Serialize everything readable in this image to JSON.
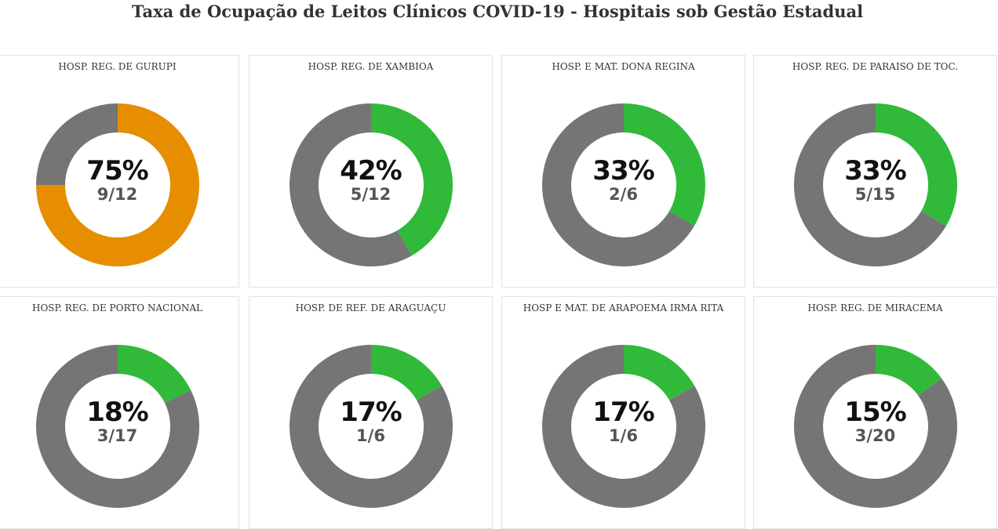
{
  "title": "Taxa de Ocupação de Leitos Clínicos COVID-19 - Hospitais sob Gestão Estadual",
  "colors": {
    "remaining": "#757575",
    "low": "#31b93a",
    "high": "#e68e00"
  },
  "chart_data": [
    {
      "type": "pie",
      "title": "HOSP. REG. DE GURUPI",
      "value_pct": 75,
      "label": "75%",
      "ratio": "9/12",
      "occupied": 9,
      "total": 12,
      "color": "#e68e00"
    },
    {
      "type": "pie",
      "title": "HOSP. REG. DE XAMBIOA",
      "value_pct": 42,
      "label": "42%",
      "ratio": "5/12",
      "occupied": 5,
      "total": 12,
      "color": "#31b93a"
    },
    {
      "type": "pie",
      "title": "HOSP. E MAT. DONA REGINA",
      "value_pct": 33,
      "label": "33%",
      "ratio": "2/6",
      "occupied": 2,
      "total": 6,
      "color": "#31b93a"
    },
    {
      "type": "pie",
      "title": "HOSP. REG. DE PARAISO DE TOC.",
      "value_pct": 33,
      "label": "33%",
      "ratio": "5/15",
      "occupied": 5,
      "total": 15,
      "color": "#31b93a"
    },
    {
      "type": "pie",
      "title": "HOSP. REG. DE PORTO NACIONAL",
      "value_pct": 18,
      "label": "18%",
      "ratio": "3/17",
      "occupied": 3,
      "total": 17,
      "color": "#31b93a"
    },
    {
      "type": "pie",
      "title": "HOSP. DE REF. DE ARAGUAÇU",
      "value_pct": 17,
      "label": "17%",
      "ratio": "1/6",
      "occupied": 1,
      "total": 6,
      "color": "#31b93a"
    },
    {
      "type": "pie",
      "title": "HOSP E MAT. DE ARAPOEMA IRMA RITA",
      "value_pct": 17,
      "label": "17%",
      "ratio": "1/6",
      "occupied": 1,
      "total": 6,
      "color": "#31b93a"
    },
    {
      "type": "pie",
      "title": "HOSP. REG. DE MIRACEMA",
      "value_pct": 15,
      "label": "15%",
      "ratio": "3/20",
      "occupied": 3,
      "total": 20,
      "color": "#31b93a"
    }
  ]
}
